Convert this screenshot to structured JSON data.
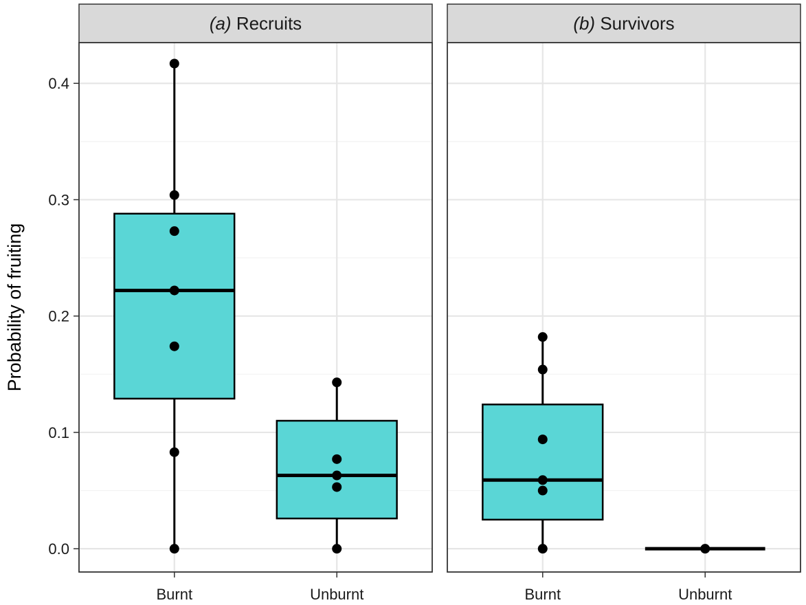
{
  "chart_data": {
    "type": "boxplot",
    "ylabel": "Probability of fruiting",
    "ylim": [
      -0.02,
      0.435
    ],
    "yticks": [
      "0.0",
      "0.1",
      "0.2",
      "0.3",
      "0.4"
    ],
    "grid": true,
    "box_color": "#5ad6d6",
    "panels": [
      {
        "label_prefix": "(a)",
        "label_name": "Recruits",
        "categories": [
          "Burnt",
          "Unburnt"
        ],
        "boxes": [
          {
            "category": "Burnt",
            "whisker_low": 0.0,
            "q1": 0.129,
            "median": 0.222,
            "q3": 0.288,
            "whisker_high": 0.417,
            "points": [
              0.417,
              0.304,
              0.273,
              0.222,
              0.174,
              0.083,
              0.0
            ]
          },
          {
            "category": "Unburnt",
            "whisker_low": 0.0,
            "q1": 0.026,
            "median": 0.063,
            "q3": 0.11,
            "whisker_high": 0.143,
            "points": [
              0.143,
              0.077,
              0.063,
              0.053,
              0.0
            ]
          }
        ]
      },
      {
        "label_prefix": "(b)",
        "label_name": "Survivors",
        "categories": [
          "Burnt",
          "Unburnt"
        ],
        "boxes": [
          {
            "category": "Burnt",
            "whisker_low": 0.0,
            "q1": 0.025,
            "median": 0.059,
            "q3": 0.124,
            "whisker_high": 0.182,
            "points": [
              0.182,
              0.154,
              0.094,
              0.059,
              0.05,
              0.0
            ]
          },
          {
            "category": "Unburnt",
            "whisker_low": 0.0,
            "q1": 0.0,
            "median": 0.0,
            "q3": 0.0,
            "whisker_high": 0.0,
            "points": [
              0.0
            ]
          }
        ]
      }
    ]
  }
}
